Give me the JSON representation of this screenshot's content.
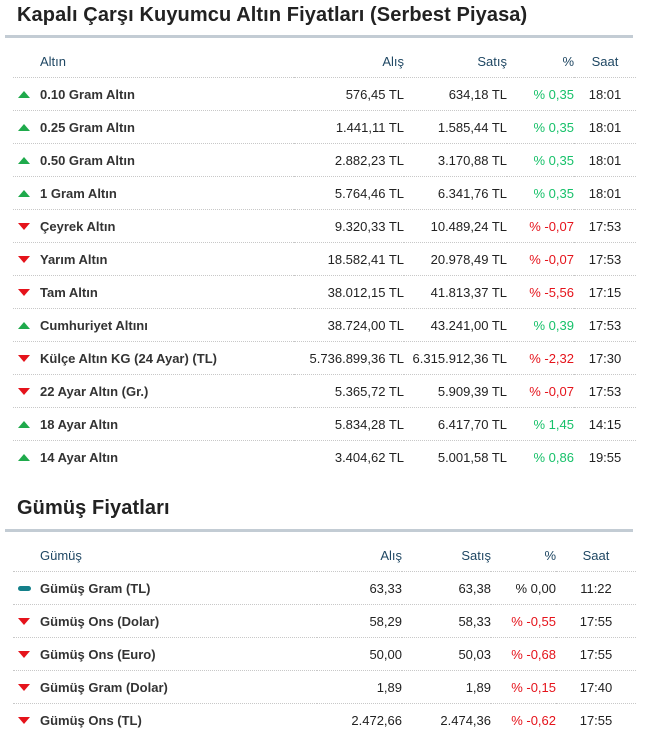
{
  "gold": {
    "title": "Kapalı Çarşı Kuyumcu Altın Fiyatları (Serbest Piyasa)",
    "headers": {
      "name": "Altın",
      "buy": "Alış",
      "sell": "Satış",
      "pct": "%",
      "time": "Saat"
    },
    "rows": [
      {
        "name": "0.10 Gram Altın",
        "buy": "576,45 TL",
        "sell": "634,18 TL",
        "pct": "% 0,35",
        "time": "18:01",
        "trend": "up"
      },
      {
        "name": "0.25 Gram Altın",
        "buy": "1.441,11 TL",
        "sell": "1.585,44 TL",
        "pct": "% 0,35",
        "time": "18:01",
        "trend": "up"
      },
      {
        "name": "0.50 Gram Altın",
        "buy": "2.882,23 TL",
        "sell": "3.170,88 TL",
        "pct": "% 0,35",
        "time": "18:01",
        "trend": "up"
      },
      {
        "name": "1 Gram Altın",
        "buy": "5.764,46 TL",
        "sell": "6.341,76 TL",
        "pct": "% 0,35",
        "time": "18:01",
        "trend": "up"
      },
      {
        "name": "Çeyrek Altın",
        "buy": "9.320,33 TL",
        "sell": "10.489,24 TL",
        "pct": "% -0,07",
        "time": "17:53",
        "trend": "down"
      },
      {
        "name": "Yarım Altın",
        "buy": "18.582,41 TL",
        "sell": "20.978,49 TL",
        "pct": "% -0,07",
        "time": "17:53",
        "trend": "down"
      },
      {
        "name": "Tam Altın",
        "buy": "38.012,15 TL",
        "sell": "41.813,37 TL",
        "pct": "% -5,56",
        "time": "17:15",
        "trend": "down"
      },
      {
        "name": "Cumhuriyet Altını",
        "buy": "38.724,00 TL",
        "sell": "43.241,00 TL",
        "pct": "% 0,39",
        "time": "17:53",
        "trend": "up"
      },
      {
        "name": "Külçe Altın KG (24 Ayar) (TL)",
        "buy": "5.736.899,36 TL",
        "sell": "6.315.912,36 TL",
        "pct": "% -2,32",
        "time": "17:30",
        "trend": "down"
      },
      {
        "name": "22 Ayar Altın (Gr.)",
        "buy": "5.365,72 TL",
        "sell": "5.909,39 TL",
        "pct": "% -0,07",
        "time": "17:53",
        "trend": "down"
      },
      {
        "name": "18 Ayar Altın",
        "buy": "5.834,28 TL",
        "sell": "6.417,70 TL",
        "pct": "% 1,45",
        "time": "14:15",
        "trend": "up"
      },
      {
        "name": "14 Ayar Altın",
        "buy": "3.404,62 TL",
        "sell": "5.001,58 TL",
        "pct": "% 0,86",
        "time": "19:55",
        "trend": "up"
      }
    ]
  },
  "silver": {
    "title": "Gümüş Fiyatları",
    "headers": {
      "name": "Gümüş",
      "buy": "Alış",
      "sell": "Satış",
      "pct": "%",
      "time": "Saat"
    },
    "rows": [
      {
        "name": "Gümüş Gram (TL)",
        "buy": "63,33",
        "sell": "63,38",
        "pct": "% 0,00",
        "time": "11:22",
        "trend": "flat"
      },
      {
        "name": "Gümüş Ons (Dolar)",
        "buy": "58,29",
        "sell": "58,33",
        "pct": "% -0,55",
        "time": "17:55",
        "trend": "down"
      },
      {
        "name": "Gümüş Ons (Euro)",
        "buy": "50,00",
        "sell": "50,03",
        "pct": "% -0,68",
        "time": "17:55",
        "trend": "down"
      },
      {
        "name": "Gümüş Gram (Dolar)",
        "buy": "1,89",
        "sell": "1,89",
        "pct": "% -0,15",
        "time": "17:40",
        "trend": "down"
      },
      {
        "name": "Gümüş Ons (TL)",
        "buy": "2.472,66",
        "sell": "2.474,36",
        "pct": "% -0,62",
        "time": "17:55",
        "trend": "down"
      }
    ]
  },
  "colors": {
    "up": "#1faa4c",
    "down": "#e5131b",
    "flat": "#14808a"
  }
}
